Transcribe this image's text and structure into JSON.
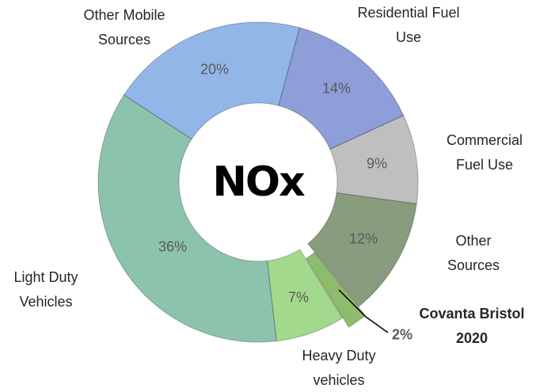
{
  "chart_data": {
    "type": "pie",
    "title": "NOx",
    "categories": [
      "Residential Fuel Use",
      "Commercial Fuel Use",
      "Other Sources",
      "Covanta Bristol 2020",
      "Heavy Duty vehicles",
      "Light Duty Vehicles",
      "Other Mobile Sources"
    ],
    "values": [
      14,
      9,
      12,
      2,
      7,
      36,
      20
    ],
    "value_labels": [
      "14%",
      "9%",
      "12%",
      "2%",
      "7%",
      "36%",
      "20%"
    ],
    "colors": [
      "#8d9ed8",
      "#bfbfbf",
      "#889c7e",
      "#8dbd6c",
      "#a3d98c",
      "#8cc3ad",
      "#93b6e8"
    ]
  }
}
